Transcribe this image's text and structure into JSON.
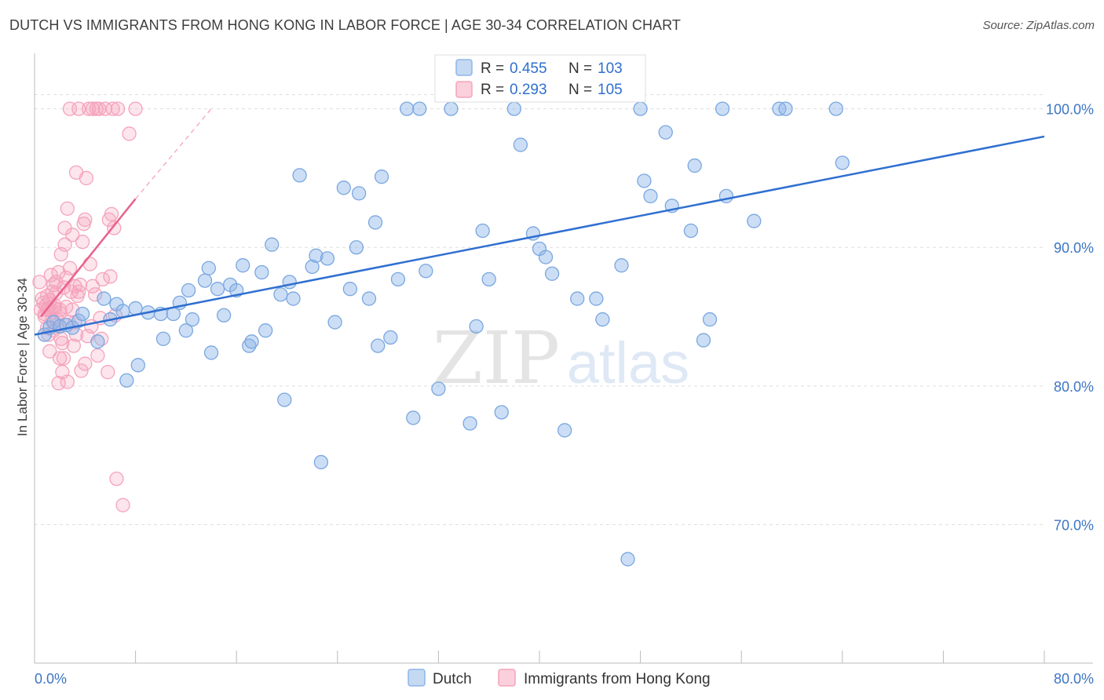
{
  "title": "DUTCH VS IMMIGRANTS FROM HONG KONG IN LABOR FORCE | AGE 30-34 CORRELATION CHART",
  "source": "Source: ZipAtlas.com",
  "watermark": {
    "zip": "ZIP",
    "atlas": "atlas"
  },
  "colors": {
    "blue": "#8fb6e8",
    "blue_line": "#2f6fd0",
    "pink": "#f5a3bc",
    "pink_line": "#e8628c",
    "axis_text": "#3d75c4",
    "grid": "#dddddd"
  },
  "chart_data": {
    "type": "scatter",
    "title": "DUTCH VS IMMIGRANTS FROM HONG KONG IN LABOR FORCE | AGE 30-34 CORRELATION CHART",
    "xlabel": "",
    "ylabel": "In Labor Force | Age 30-34",
    "xlim": [
      0,
      80
    ],
    "ylim": [
      60,
      104
    ],
    "x_tick_labels": [
      "0.0%",
      "80.0%"
    ],
    "y_ticks": [
      70,
      80,
      90,
      100
    ],
    "y_tick_labels": [
      "70.0%",
      "80.0%",
      "90.0%",
      "100.0%"
    ],
    "legend": [
      {
        "name": "Dutch",
        "r_label": "R =",
        "r_value": "0.455",
        "n_label": "N =",
        "n_value": "103"
      },
      {
        "name": "Immigrants from Hong Kong",
        "r_label": "R =",
        "r_value": "0.293",
        "n_label": "N =",
        "n_value": "105"
      }
    ],
    "series": [
      {
        "name": "Dutch",
        "trend": {
          "x": [
            0,
            80
          ],
          "y": [
            83.7,
            98.0
          ]
        },
        "points": [
          [
            0.8,
            83.7
          ],
          [
            1.2,
            84.2
          ],
          [
            1.5,
            84.6
          ],
          [
            2.0,
            84.3
          ],
          [
            2.5,
            84.4
          ],
          [
            3.0,
            84.2
          ],
          [
            3.5,
            84.7
          ],
          [
            3.8,
            85.2
          ],
          [
            5.0,
            83.2
          ],
          [
            5.5,
            86.3
          ],
          [
            6.0,
            84.8
          ],
          [
            6.5,
            85.9
          ],
          [
            7.0,
            85.4
          ],
          [
            7.3,
            80.4
          ],
          [
            8.0,
            85.6
          ],
          [
            8.2,
            81.5
          ],
          [
            9.0,
            85.3
          ],
          [
            10.0,
            85.2
          ],
          [
            10.2,
            83.4
          ],
          [
            11.0,
            85.2
          ],
          [
            11.5,
            86.0
          ],
          [
            12.0,
            84.0
          ],
          [
            12.2,
            86.9
          ],
          [
            12.5,
            84.8
          ],
          [
            13.5,
            87.6
          ],
          [
            13.8,
            88.5
          ],
          [
            14.0,
            82.4
          ],
          [
            14.5,
            87.0
          ],
          [
            15.0,
            85.1
          ],
          [
            15.5,
            87.3
          ],
          [
            16.0,
            86.9
          ],
          [
            16.5,
            88.7
          ],
          [
            17.0,
            82.9
          ],
          [
            17.2,
            83.2
          ],
          [
            18.0,
            88.2
          ],
          [
            18.3,
            84.0
          ],
          [
            18.8,
            90.2
          ],
          [
            19.5,
            86.6
          ],
          [
            19.8,
            79.0
          ],
          [
            20.2,
            87.5
          ],
          [
            20.5,
            86.3
          ],
          [
            21.0,
            95.2
          ],
          [
            22.0,
            88.6
          ],
          [
            22.3,
            89.4
          ],
          [
            22.7,
            74.5
          ],
          [
            23.2,
            89.2
          ],
          [
            23.8,
            84.6
          ],
          [
            24.5,
            94.3
          ],
          [
            25.0,
            87.0
          ],
          [
            25.5,
            90.0
          ],
          [
            25.7,
            93.9
          ],
          [
            26.5,
            86.3
          ],
          [
            27.0,
            91.8
          ],
          [
            27.2,
            82.9
          ],
          [
            27.5,
            95.1
          ],
          [
            28.2,
            83.5
          ],
          [
            28.8,
            87.7
          ],
          [
            29.5,
            100
          ],
          [
            30.0,
            77.7
          ],
          [
            30.5,
            100
          ],
          [
            31.0,
            88.3
          ],
          [
            32.0,
            79.8
          ],
          [
            33.0,
            100
          ],
          [
            34.5,
            77.3
          ],
          [
            35.0,
            84.3
          ],
          [
            35.5,
            91.2
          ],
          [
            36.0,
            87.7
          ],
          [
            37.0,
            78.1
          ],
          [
            38.0,
            100
          ],
          [
            38.5,
            97.4
          ],
          [
            39.5,
            91.0
          ],
          [
            40.0,
            89.9
          ],
          [
            40.5,
            89.3
          ],
          [
            41.0,
            88.1
          ],
          [
            42.0,
            76.8
          ],
          [
            43.0,
            86.3
          ],
          [
            44.5,
            86.3
          ],
          [
            45.0,
            84.8
          ],
          [
            46.5,
            88.7
          ],
          [
            47.0,
            67.5
          ],
          [
            48.0,
            100
          ],
          [
            48.3,
            94.8
          ],
          [
            48.8,
            93.7
          ],
          [
            50.0,
            98.3
          ],
          [
            50.5,
            93.0
          ],
          [
            52.0,
            91.2
          ],
          [
            52.3,
            95.9
          ],
          [
            53.0,
            83.3
          ],
          [
            53.5,
            84.8
          ],
          [
            54.5,
            100
          ],
          [
            54.8,
            93.7
          ],
          [
            57.0,
            91.9
          ],
          [
            59.0,
            100
          ],
          [
            59.5,
            100
          ],
          [
            63.5,
            100
          ],
          [
            64.0,
            96.1
          ]
        ]
      },
      {
        "name": "Immigrants from Hong Kong",
        "trend": {
          "x": [
            0.5,
            8.0
          ],
          "y": [
            85.0,
            93.5
          ]
        },
        "trend_dashed": {
          "x": [
            8.0,
            14.0
          ],
          "y": [
            93.5,
            100.0
          ]
        },
        "points": [
          [
            0.4,
            87.5
          ],
          [
            0.5,
            85.5
          ],
          [
            0.6,
            86.3
          ],
          [
            0.7,
            86.0
          ],
          [
            0.8,
            85.2
          ],
          [
            0.8,
            85.0
          ],
          [
            0.9,
            85.8
          ],
          [
            1.0,
            86.5
          ],
          [
            1.0,
            85.5
          ],
          [
            1.0,
            84.2
          ],
          [
            1.1,
            83.7
          ],
          [
            1.1,
            85.6
          ],
          [
            1.2,
            86.2
          ],
          [
            1.2,
            82.5
          ],
          [
            1.3,
            85.5
          ],
          [
            1.3,
            88.0
          ],
          [
            1.4,
            84.8
          ],
          [
            1.4,
            86.8
          ],
          [
            1.5,
            87.3
          ],
          [
            1.5,
            84.0
          ],
          [
            1.6,
            85.6
          ],
          [
            1.6,
            85.8
          ],
          [
            1.7,
            86.7
          ],
          [
            1.7,
            87.5
          ],
          [
            1.8,
            84.4
          ],
          [
            1.8,
            84.8
          ],
          [
            1.9,
            80.2
          ],
          [
            1.9,
            88.2
          ],
          [
            2.0,
            82.0
          ],
          [
            2.0,
            85.5
          ],
          [
            2.0,
            85.3
          ],
          [
            2.1,
            83.4
          ],
          [
            2.1,
            89.5
          ],
          [
            2.2,
            81.0
          ],
          [
            2.2,
            83.1
          ],
          [
            2.3,
            87.1
          ],
          [
            2.3,
            82.0
          ],
          [
            2.4,
            90.2
          ],
          [
            2.4,
            91.4
          ],
          [
            2.5,
            87.8
          ],
          [
            2.5,
            85.7
          ],
          [
            2.6,
            80.3
          ],
          [
            2.6,
            92.8
          ],
          [
            2.7,
            84.6
          ],
          [
            2.8,
            88.5
          ],
          [
            2.8,
            100
          ],
          [
            2.9,
            86.8
          ],
          [
            3.0,
            85.5
          ],
          [
            3.0,
            90.9
          ],
          [
            3.1,
            82.9
          ],
          [
            3.2,
            87.2
          ],
          [
            3.2,
            84.6
          ],
          [
            3.3,
            83.7
          ],
          [
            3.3,
            95.4
          ],
          [
            3.4,
            86.5
          ],
          [
            3.5,
            86.8
          ],
          [
            3.5,
            100
          ],
          [
            3.6,
            87.3
          ],
          [
            3.7,
            81.1
          ],
          [
            3.8,
            90.4
          ],
          [
            3.9,
            91.7
          ],
          [
            4.0,
            92.0
          ],
          [
            4.0,
            81.6
          ],
          [
            4.1,
            95.0
          ],
          [
            4.2,
            83.6
          ],
          [
            4.3,
            100
          ],
          [
            4.4,
            88.8
          ],
          [
            4.5,
            84.3
          ],
          [
            4.6,
            87.2
          ],
          [
            4.6,
            100
          ],
          [
            4.8,
            86.6
          ],
          [
            4.9,
            100
          ],
          [
            5.0,
            82.2
          ],
          [
            5.1,
            100
          ],
          [
            5.2,
            84.9
          ],
          [
            5.3,
            83.4
          ],
          [
            5.4,
            87.7
          ],
          [
            5.6,
            100
          ],
          [
            5.8,
            81.0
          ],
          [
            5.9,
            92.0
          ],
          [
            6.0,
            87.9
          ],
          [
            6.1,
            92.4
          ],
          [
            6.2,
            100
          ],
          [
            6.3,
            91.4
          ],
          [
            6.4,
            85.1
          ],
          [
            6.5,
            73.3
          ],
          [
            6.6,
            100
          ],
          [
            7.0,
            71.4
          ],
          [
            7.5,
            98.2
          ],
          [
            8.0,
            100
          ]
        ]
      }
    ]
  }
}
